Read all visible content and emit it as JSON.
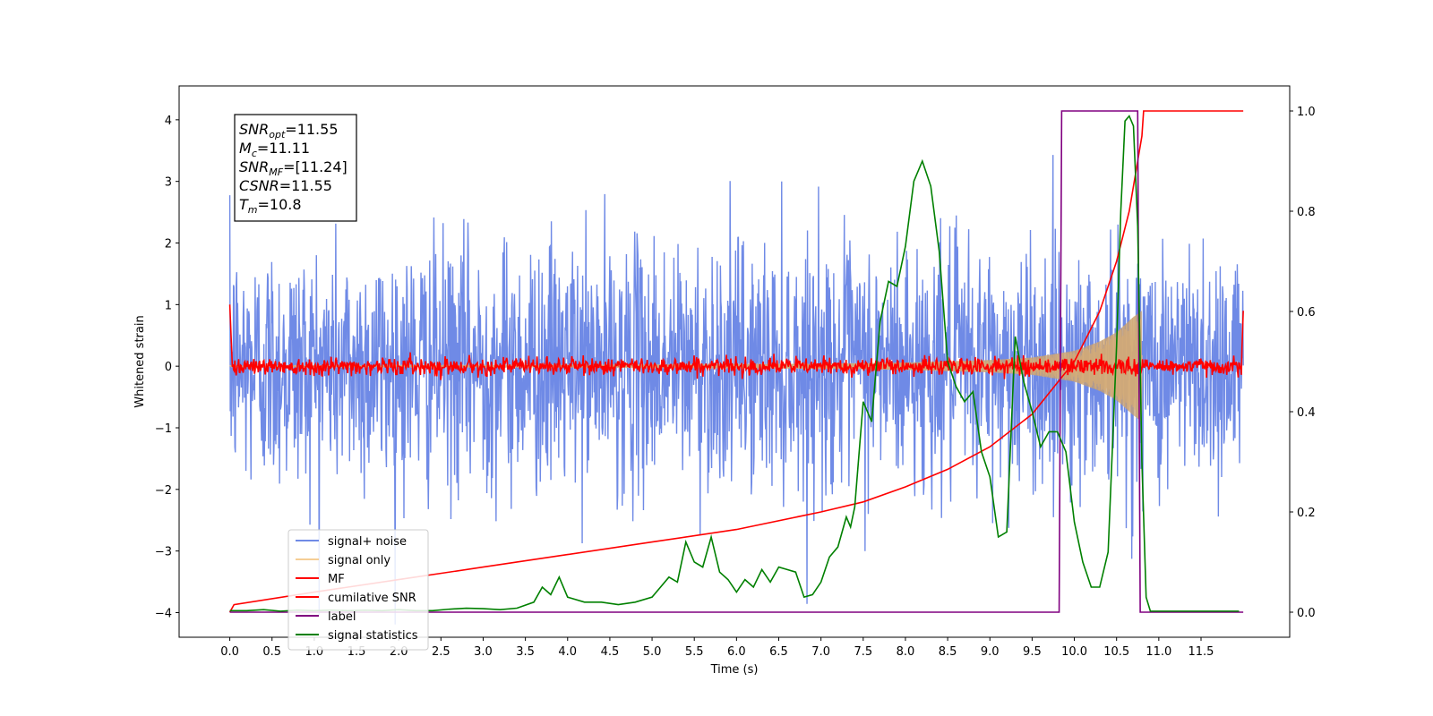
{
  "chart_data": {
    "type": "line",
    "xlabel": "Time (s)",
    "ylabel": "Whitened strain",
    "xlim": [
      -0.6,
      12.55
    ],
    "ylim": [
      -4.4,
      4.55
    ],
    "y2lim": [
      -0.05,
      1.05
    ],
    "x_ticks": [
      "0.0",
      "0.5",
      "1.0",
      "1.5",
      "2.0",
      "2.5",
      "3.0",
      "3.5",
      "4.0",
      "4.5",
      "5.0",
      "5.5",
      "6.0",
      "6.5",
      "7.0",
      "7.5",
      "8.0",
      "8.5",
      "9.0",
      "9.5",
      "10.0",
      "10.5",
      "11.0",
      "11.5"
    ],
    "y_ticks": [
      "4",
      "3",
      "2",
      "1",
      "0",
      "−1",
      "−2",
      "−3",
      "−4"
    ],
    "y2_ticks": [
      "1.0",
      "0.8",
      "0.6",
      "0.4",
      "0.2",
      "0.0"
    ],
    "grid": false,
    "legend_position": "lower-left",
    "info_box": {
      "lines": [
        {
          "sym": "SNR",
          "sub": "opt",
          "value": "=11.55"
        },
        {
          "sym": "M",
          "sub": "c",
          "value": "=11.11"
        },
        {
          "sym": "SNR",
          "sub": "MF",
          "value": "=[11.24]"
        },
        {
          "sym": "CSNR",
          "sub": "",
          "value": "=11.55"
        },
        {
          "sym": "T",
          "sub": "m",
          "value": "=10.8"
        }
      ]
    },
    "series": [
      {
        "name": "signal+ noise",
        "color": "#6f8ae6",
        "axis": "left",
        "kind": "noise",
        "x_range": [
          0,
          12
        ],
        "amplitude_sd": 1.0
      },
      {
        "name": "signal only",
        "color": "#f5c98a",
        "axis": "left",
        "kind": "chirp-envelope",
        "x_range": [
          0,
          10.8
        ],
        "envelope": {
          "x": [
            0,
            2,
            4,
            6,
            7,
            8,
            9,
            9.5,
            10,
            10.3,
            10.5,
            10.7,
            10.8
          ],
          "y": [
            0.01,
            0.015,
            0.02,
            0.03,
            0.04,
            0.06,
            0.1,
            0.14,
            0.25,
            0.4,
            0.55,
            0.8,
            0.9
          ]
        }
      },
      {
        "name": "MF",
        "color": "#ff0000",
        "axis": "left",
        "kind": "noise",
        "x_range": [
          0,
          12
        ],
        "amplitude_sd": 0.07,
        "start_value": 1.0,
        "end_value": 0.9
      },
      {
        "name": "cumilative SNR",
        "color": "#ff0000",
        "axis": "right",
        "x": [
          0,
          0.05,
          1,
          2,
          3,
          4,
          5,
          6,
          7,
          7.5,
          8,
          8.5,
          9,
          9.5,
          10,
          10.3,
          10.5,
          10.65,
          10.75,
          10.8,
          10.82,
          12
        ],
        "y": [
          0.0,
          0.015,
          0.04,
          0.065,
          0.09,
          0.115,
          0.14,
          0.165,
          0.2,
          0.22,
          0.25,
          0.285,
          0.33,
          0.395,
          0.5,
          0.6,
          0.7,
          0.8,
          0.9,
          0.95,
          1.0,
          1.0
        ]
      },
      {
        "name": "label",
        "color": "#800080",
        "axis": "right",
        "x": [
          0,
          9.82,
          9.85,
          10.75,
          10.78,
          12
        ],
        "y": [
          0,
          0,
          1,
          1,
          0,
          0
        ]
      },
      {
        "name": "signal statistics",
        "color": "#008000",
        "axis": "right",
        "x": [
          0,
          0.2,
          0.4,
          0.6,
          0.8,
          1.0,
          1.2,
          1.4,
          1.6,
          1.8,
          2.0,
          2.2,
          2.4,
          2.6,
          2.8,
          3.0,
          3.2,
          3.4,
          3.6,
          3.7,
          3.8,
          3.9,
          4.0,
          4.2,
          4.4,
          4.6,
          4.8,
          5.0,
          5.1,
          5.2,
          5.3,
          5.4,
          5.5,
          5.6,
          5.7,
          5.8,
          5.9,
          6.0,
          6.1,
          6.2,
          6.3,
          6.4,
          6.5,
          6.6,
          6.7,
          6.8,
          6.9,
          7.0,
          7.1,
          7.2,
          7.3,
          7.35,
          7.4,
          7.5,
          7.6,
          7.7,
          7.8,
          7.9,
          8.0,
          8.1,
          8.2,
          8.3,
          8.4,
          8.5,
          8.6,
          8.7,
          8.8,
          8.9,
          9.0,
          9.1,
          9.2,
          9.3,
          9.4,
          9.5,
          9.6,
          9.7,
          9.8,
          9.9,
          10.0,
          10.1,
          10.2,
          10.3,
          10.4,
          10.5,
          10.55,
          10.6,
          10.65,
          10.7,
          10.75,
          10.8,
          10.85,
          10.9,
          11.0,
          11.5,
          11.95
        ],
        "y": [
          0.003,
          0.003,
          0.005,
          0.002,
          0.004,
          0.003,
          0.004,
          0.003,
          0.004,
          0.003,
          0.005,
          0.003,
          0.003,
          0.006,
          0.008,
          0.007,
          0.005,
          0.008,
          0.02,
          0.05,
          0.035,
          0.07,
          0.03,
          0.02,
          0.02,
          0.015,
          0.02,
          0.03,
          0.05,
          0.07,
          0.06,
          0.14,
          0.1,
          0.09,
          0.15,
          0.08,
          0.065,
          0.04,
          0.065,
          0.05,
          0.085,
          0.06,
          0.09,
          0.085,
          0.08,
          0.03,
          0.035,
          0.06,
          0.11,
          0.13,
          0.19,
          0.17,
          0.21,
          0.42,
          0.38,
          0.58,
          0.66,
          0.65,
          0.73,
          0.86,
          0.9,
          0.85,
          0.72,
          0.5,
          0.45,
          0.42,
          0.44,
          0.32,
          0.27,
          0.15,
          0.16,
          0.55,
          0.46,
          0.4,
          0.33,
          0.36,
          0.36,
          0.32,
          0.18,
          0.1,
          0.05,
          0.05,
          0.12,
          0.53,
          0.8,
          0.98,
          0.99,
          0.97,
          0.77,
          0.3,
          0.03,
          0.002,
          0.002,
          0.002,
          0.002
        ]
      }
    ]
  }
}
